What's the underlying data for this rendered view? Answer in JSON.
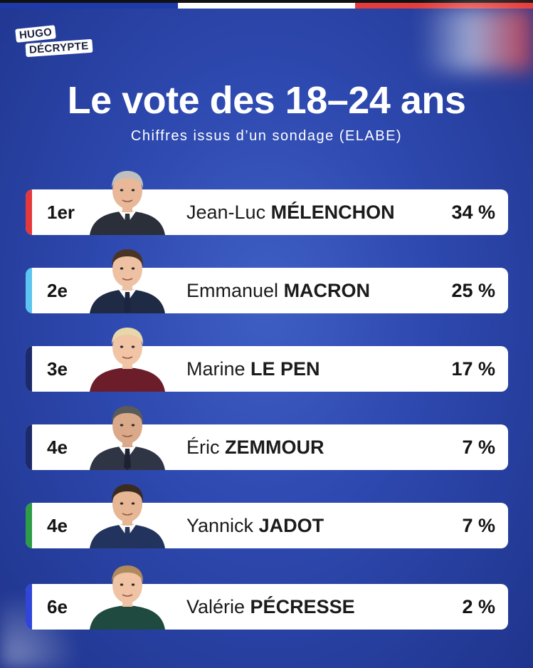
{
  "brand": {
    "line1": "HUGO",
    "line2": "DÉCRYPTE"
  },
  "title": "Le vote des 18–24 ans",
  "subtitle": "Chiffres issus d’un sondage (ELABE)",
  "colors": {
    "flag_blue": "#1e3aa8",
    "flag_white": "#ffffff",
    "flag_red": "#e23c3c",
    "background": "#2d48ae"
  },
  "candidates": [
    {
      "rank": "1er",
      "first": "Jean-Luc",
      "last": "MÉLENCHON",
      "percent": "34 %",
      "accent": "#e5383b",
      "suit": "#2b2f3a",
      "shirt": "#ffffff",
      "tie": "#2b2f3a",
      "hair": "#bfbfbf",
      "skin": "#e8b899",
      "icon": "portrait-melenchon-icon"
    },
    {
      "rank": "2e",
      "first": "Emmanuel",
      "last": "MACRON",
      "percent": "25 %",
      "accent": "#5bc4f0",
      "suit": "#1f2a44",
      "shirt": "#ffffff",
      "tie": "#1b2540",
      "hair": "#4a3426",
      "skin": "#efc1a3",
      "icon": "portrait-macron-icon"
    },
    {
      "rank": "3e",
      "first": "Marine",
      "last": "LE PEN",
      "percent": "17 %",
      "accent": "#1b2a6b",
      "suit": "#6b1e2a",
      "shirt": "#6b1e2a",
      "tie": "#6b1e2a",
      "hair": "#e8d7a8",
      "skin": "#f0c4a5",
      "icon": "portrait-lepen-icon"
    },
    {
      "rank": "4e",
      "first": "Éric",
      "last": "ZEMMOUR",
      "percent": "7 %",
      "accent": "#1b2a6b",
      "suit": "#2f3544",
      "shirt": "#ffffff",
      "tie": "#1e2230",
      "hair": "#5a5a5a",
      "skin": "#d9a98a",
      "icon": "portrait-zemmour-icon"
    },
    {
      "rank": "4e",
      "first": "Yannick",
      "last": "JADOT",
      "percent": "7 %",
      "accent": "#2e9b47",
      "suit": "#22345e",
      "shirt": "#ffffff",
      "tie": "#22345e",
      "hair": "#3b2a1e",
      "skin": "#e6b695",
      "icon": "portrait-jadot-icon"
    },
    {
      "rank": "6e",
      "first": "Valérie",
      "last": "PÉCRESSE",
      "percent": "2 %",
      "accent": "#2f46d8",
      "suit": "#1f4a3f",
      "shirt": "#1f4a3f",
      "tie": "#1f4a3f",
      "hair": "#b08a5a",
      "skin": "#efc3a4",
      "icon": "portrait-pecresse-icon"
    }
  ]
}
